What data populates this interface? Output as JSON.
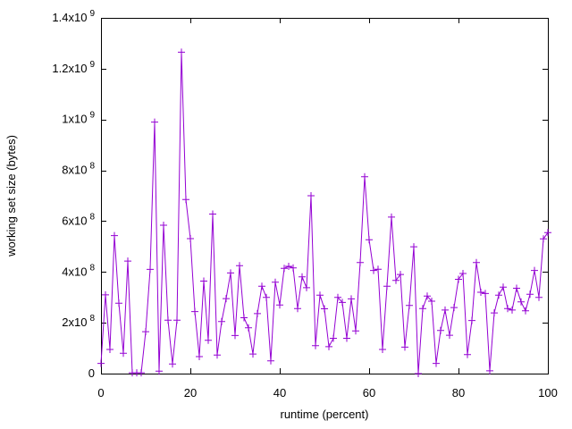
{
  "page": {
    "background": "#ffffff",
    "border_color": "#000000",
    "text_color": "#000000"
  },
  "chart_data": {
    "type": "line",
    "title": "",
    "xlabel": "runtime (percent)",
    "ylabel": "working set size (bytes)",
    "grid": false,
    "legend": "none",
    "x_axis": {
      "min": 0,
      "max": 100,
      "tick_values": [
        0,
        20,
        40,
        60,
        80,
        100
      ],
      "tick_labels": [
        "0",
        "20",
        "40",
        "60",
        "80",
        "100"
      ]
    },
    "y_axis": {
      "min": 0,
      "max": 1400000000,
      "unit": "bytes",
      "ticks": [
        {
          "value": 0,
          "mantissa": "0",
          "exp": ""
        },
        {
          "value": 200000000,
          "mantissa": "2x10",
          "exp": "8"
        },
        {
          "value": 400000000,
          "mantissa": "4x10",
          "exp": "8"
        },
        {
          "value": 600000000,
          "mantissa": "6x10",
          "exp": "8"
        },
        {
          "value": 800000000,
          "mantissa": "8x10",
          "exp": "8"
        },
        {
          "value": 1000000000,
          "mantissa": "1x10",
          "exp": "9"
        },
        {
          "value": 1200000000,
          "mantissa": "1.2x10",
          "exp": "9"
        },
        {
          "value": 1400000000,
          "mantissa": "1.4x10",
          "exp": "9"
        }
      ]
    },
    "series": [
      {
        "name": "working set size",
        "color": "#9400D3",
        "marker": "plus",
        "x_unit": "percent",
        "x_start": 0,
        "x_step": 1,
        "y_unit": "1e8 bytes",
        "values": [
          0.4,
          3.1,
          0.95,
          5.43,
          2.77,
          0.8,
          4.43,
          0.03,
          0.03,
          0.03,
          1.65,
          4.1,
          9.9,
          0.1,
          5.84,
          2.1,
          0.38,
          2.1,
          12.65,
          6.85,
          5.31,
          2.44,
          0.67,
          3.64,
          1.31,
          6.28,
          0.73,
          2.05,
          2.95,
          3.96,
          1.5,
          4.25,
          2.2,
          1.8,
          0.77,
          2.36,
          3.44,
          3.0,
          0.5,
          3.6,
          2.7,
          4.14,
          4.22,
          4.16,
          2.56,
          3.81,
          3.38,
          7.0,
          1.1,
          3.09,
          2.55,
          1.06,
          1.39,
          3.0,
          2.8,
          1.39,
          2.94,
          1.68,
          4.37,
          7.75,
          5.27,
          4.06,
          4.11,
          0.95,
          3.44,
          6.16,
          3.67,
          3.9,
          1.04,
          2.68,
          4.99,
          0.0,
          2.56,
          3.05,
          2.85,
          0.4,
          1.7,
          2.5,
          1.51,
          2.6,
          3.71,
          3.94,
          0.75,
          2.09,
          4.37,
          3.2,
          3.15,
          0.11,
          2.39,
          3.09,
          3.4,
          2.56,
          2.5,
          3.36,
          2.82,
          2.47,
          3.12,
          4.06,
          3.0,
          5.3,
          5.55
        ]
      }
    ]
  }
}
